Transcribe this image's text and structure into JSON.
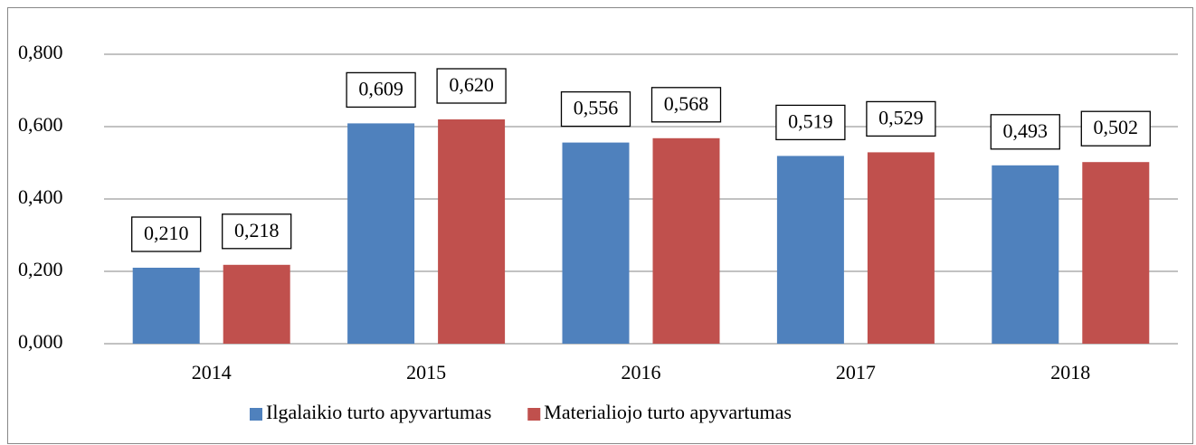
{
  "chart_data": {
    "type": "bar",
    "categories": [
      "2014",
      "2015",
      "2016",
      "2017",
      "2018"
    ],
    "series": [
      {
        "name": "Ilgalaikio turto apyvartumas",
        "color": "#4f81bd",
        "values": [
          0.21,
          0.609,
          0.556,
          0.519,
          0.493
        ],
        "value_labels": [
          "0,210",
          "0,609",
          "0,556",
          "0,519",
          "0,493"
        ]
      },
      {
        "name": "Materialiojo turto apyvartumas",
        "color": "#c0504d",
        "values": [
          0.218,
          0.62,
          0.568,
          0.529,
          0.502
        ],
        "value_labels": [
          "0,218",
          "0,620",
          "0,568",
          "0,529",
          "0,502"
        ]
      }
    ],
    "ylim": [
      0,
      0.8
    ],
    "yticks": [
      {
        "value": 0,
        "label": "0,000"
      },
      {
        "value": 0.2,
        "label": "0,200"
      },
      {
        "value": 0.4,
        "label": "0,400"
      },
      {
        "value": 0.6,
        "label": "0,600"
      },
      {
        "value": 0.8,
        "label": "0,800"
      }
    ],
    "grid": true,
    "legend": "bottom"
  }
}
